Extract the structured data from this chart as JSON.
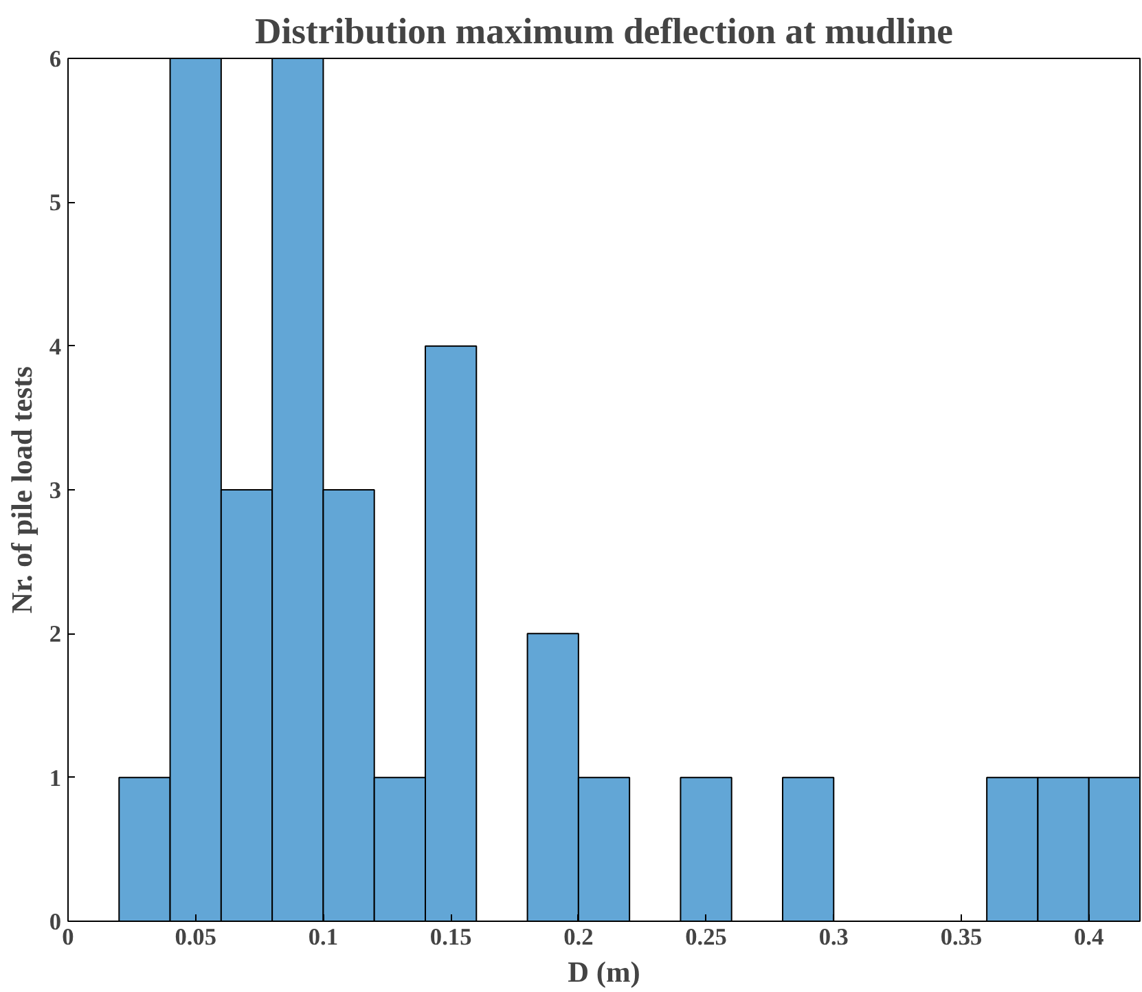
{
  "chart_data": {
    "type": "histogram",
    "title": "Distribution maximum deflection at mudline",
    "xlabel": "D (m)",
    "ylabel": "Nr. of pile load tests",
    "bins": [
      0.02,
      0.04,
      0.06,
      0.08,
      0.1,
      0.12,
      0.14,
      0.16,
      0.18,
      0.2,
      0.22,
      0.24,
      0.26,
      0.28,
      0.3,
      0.32,
      0.34,
      0.36,
      0.38,
      0.4,
      0.42
    ],
    "values": [
      1,
      6,
      3,
      6,
      3,
      1,
      4,
      0,
      2,
      1,
      0,
      1,
      0,
      1,
      0,
      0,
      0,
      1,
      1,
      1
    ],
    "color": "#62a6d6",
    "xlim": [
      0,
      0.42
    ],
    "ylim": [
      0,
      6
    ],
    "xticks": [
      0,
      0.05,
      0.1,
      0.15,
      0.2,
      0.25,
      0.3,
      0.35,
      0.4
    ],
    "yticks": [
      0,
      1,
      2,
      3,
      4,
      5,
      6
    ],
    "grid": false
  }
}
